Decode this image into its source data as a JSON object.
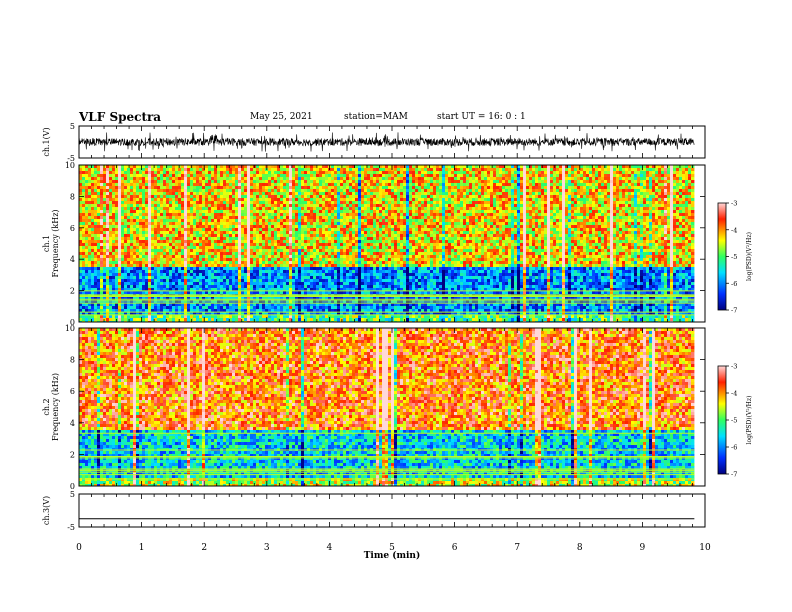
{
  "header": {
    "title": "VLF Spectra",
    "date": "May 25, 2021",
    "station": "station=MAM",
    "start": "start  UT =   16: 0  : 1"
  },
  "chart_data": [
    {
      "type": "line",
      "panel": "channel-1-waveform",
      "ylabel": "ch.1(V)",
      "ylim": [
        -5,
        5
      ],
      "yticks": [
        "5",
        "-5"
      ],
      "xlim": [
        0,
        10
      ],
      "description_of_signal": "dense noisy waveform, mostly between -3 and 3 V"
    },
    {
      "type": "heatmap",
      "panel": "channel-1-spectrogram",
      "ylabel": "ch.1\nFrequency (kHz)",
      "ylim": [
        0,
        10
      ],
      "yticks": [
        "0",
        "2",
        "4",
        "6",
        "8",
        "10"
      ],
      "xlim": [
        0,
        10
      ],
      "colorbar": {
        "label": "log(PSD)(V²/Hz)",
        "range": [
          -7,
          -3
        ],
        "ticks": [
          "-3",
          "-4",
          "-5",
          "-6",
          "-7"
        ]
      },
      "approx_profile": {
        "low_band_kHz": [
          0,
          3.5
        ],
        "low_band_level": -6.0,
        "high_band_level": -4.3
      }
    },
    {
      "type": "heatmap",
      "panel": "channel-2-spectrogram",
      "ylabel": "ch.2\nFrequency (kHz)",
      "ylim": [
        0,
        10
      ],
      "yticks": [
        "0",
        "2",
        "4",
        "6",
        "8",
        "10"
      ],
      "xlim": [
        0,
        10
      ],
      "colorbar": {
        "label": "log(PSD)(V²/Hz)",
        "range": [
          -7,
          -3
        ],
        "ticks": [
          "-3",
          "-4",
          "-5",
          "-6",
          "-7"
        ]
      },
      "approx_profile": {
        "low_band_kHz": [
          0,
          3.5
        ],
        "low_band_level": -5.6,
        "high_band_level": -3.8
      }
    },
    {
      "type": "line",
      "panel": "channel-3-waveform",
      "ylabel": "ch.3(V)",
      "ylim": [
        -5,
        5
      ],
      "yticks": [
        "5",
        "-5"
      ],
      "xlim": [
        0,
        10
      ],
      "values_constant": -2.5
    }
  ],
  "xaxis": {
    "label": "Time (min)",
    "ticks": [
      "0",
      "1",
      "2",
      "3",
      "4",
      "5",
      "6",
      "7",
      "8",
      "9",
      "10"
    ],
    "data_end_min": 9.83
  },
  "colors": {
    "frame": "#000000",
    "background": "#ffffff"
  }
}
